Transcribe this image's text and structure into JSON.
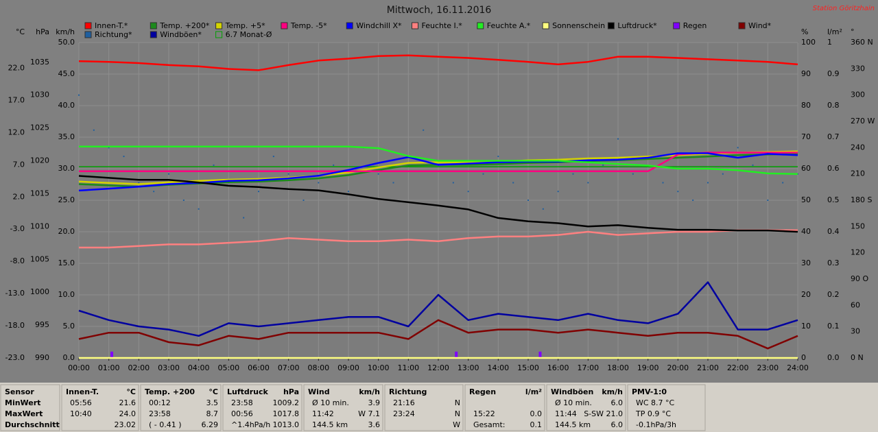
{
  "chart_data": {
    "type": "line",
    "title": "Mittwoch, 16.11.2016",
    "station": "Station Göritzhain",
    "xlim": [
      0,
      24
    ],
    "xticks": [
      {
        "value": 0,
        "label": "00:00"
      },
      {
        "value": 1,
        "label": "01:00"
      },
      {
        "value": 2,
        "label": "02:00"
      },
      {
        "value": 3,
        "label": "03:00"
      },
      {
        "value": 4,
        "label": "04:00"
      },
      {
        "value": 5,
        "label": "05:00"
      },
      {
        "value": 6,
        "label": "06:00"
      },
      {
        "value": 7,
        "label": "07:00"
      },
      {
        "value": 8,
        "label": "08:00"
      },
      {
        "value": 9,
        "label": "09:00"
      },
      {
        "value": 10,
        "label": "10:00"
      },
      {
        "value": 11,
        "label": "11:00"
      },
      {
        "value": 12,
        "label": "12:00"
      },
      {
        "value": 13,
        "label": "13:00"
      },
      {
        "value": 14,
        "label": "14:00"
      },
      {
        "value": 15,
        "label": "15:00"
      },
      {
        "value": 16,
        "label": "16:00"
      },
      {
        "value": 17,
        "label": "17:00"
      },
      {
        "value": 18,
        "label": "18:00"
      },
      {
        "value": 19,
        "label": "19:00"
      },
      {
        "value": 20,
        "label": "20:00"
      },
      {
        "value": 21,
        "label": "21:00"
      },
      {
        "value": 22,
        "label": "22:00"
      },
      {
        "value": 23,
        "label": "23:00"
      },
      {
        "value": 24,
        "label": "24:00"
      }
    ],
    "grid": true,
    "axes": [
      {
        "unit": "°C",
        "side": "left",
        "lim": [
          -23,
          26
        ],
        "ticks": [
          {
            "value": -23,
            "label": "-23.0"
          },
          {
            "value": -18,
            "label": "-18.0"
          },
          {
            "value": -13,
            "label": "-13.0"
          },
          {
            "value": -8,
            "label": "-8.0"
          },
          {
            "value": -3,
            "label": "-3.0"
          },
          {
            "value": 2,
            "label": "2.0"
          },
          {
            "value": 7,
            "label": "7.0"
          },
          {
            "value": 12,
            "label": "12.0"
          },
          {
            "value": 17,
            "label": "17.0"
          },
          {
            "value": 22,
            "label": "22.0"
          }
        ]
      },
      {
        "unit": "hPa",
        "side": "left",
        "lim": [
          990,
          1038
        ],
        "ticks": [
          990,
          995,
          1000,
          1005,
          1010,
          1015,
          1020,
          1025,
          1030,
          1035
        ]
      },
      {
        "unit": "km/h",
        "side": "left",
        "lim": [
          0,
          50
        ],
        "grid": true,
        "ticks": [
          {
            "value": 0,
            "label": "0.0"
          },
          {
            "value": 5,
            "label": "5.0"
          },
          {
            "value": 10,
            "label": "10.0"
          },
          {
            "value": 15,
            "label": "15.0"
          },
          {
            "value": 20,
            "label": "20.0"
          },
          {
            "value": 25,
            "label": "25.0"
          },
          {
            "value": 30,
            "label": "30.0"
          },
          {
            "value": 35,
            "label": "35.0"
          },
          {
            "value": 40,
            "label": "40.0"
          },
          {
            "value": 45,
            "label": "45.0"
          },
          {
            "value": 50,
            "label": "50.0"
          }
        ]
      },
      {
        "unit": "%",
        "side": "right",
        "lim": [
          0,
          100
        ],
        "ticks": [
          0,
          10,
          20,
          30,
          40,
          50,
          60,
          70,
          80,
          90,
          100
        ]
      },
      {
        "unit": "l/m²",
        "side": "right",
        "lim": [
          0,
          1
        ],
        "ticks": [
          {
            "value": 0,
            "label": "0.0"
          },
          {
            "value": 0.1,
            "label": "0.1"
          },
          {
            "value": 0.2,
            "label": "0.2"
          },
          {
            "value": 0.3,
            "label": "0.3"
          },
          {
            "value": 0.4,
            "label": "0.4"
          },
          {
            "value": 0.5,
            "label": "0.5"
          },
          {
            "value": 0.6,
            "label": "0.6"
          },
          {
            "value": 0.7,
            "label": "0.7"
          },
          {
            "value": 0.8,
            "label": "0.8"
          },
          {
            "value": 0.9,
            "label": "0.9"
          },
          1
        ]
      },
      {
        "unit": "°",
        "side": "right",
        "lim": [
          0,
          360
        ],
        "ticks": [
          {
            "value": 0,
            "label": "0 N"
          },
          30,
          60,
          {
            "value": 90,
            "label": "90 O"
          },
          120,
          150,
          {
            "value": 180,
            "label": "180 S"
          },
          210,
          240,
          {
            "value": 270,
            "label": "270 W"
          },
          300,
          330,
          {
            "value": 360,
            "label": "360 N"
          }
        ]
      }
    ],
    "x": [
      0,
      1,
      2,
      3,
      4,
      5,
      6,
      7,
      8,
      9,
      10,
      11,
      12,
      13,
      14,
      15,
      16,
      17,
      18,
      19,
      20,
      21,
      22,
      23,
      24
    ],
    "series": [
      {
        "name": "Innen-T.*",
        "color": "#ff0000",
        "axis": "°C",
        "type": "line",
        "values": [
          23.1,
          23.0,
          22.8,
          22.5,
          22.3,
          21.9,
          21.7,
          22.5,
          23.2,
          23.5,
          23.9,
          24.0,
          23.8,
          23.6,
          23.3,
          23.0,
          22.6,
          23.0,
          23.8,
          23.8,
          23.6,
          23.4,
          23.2,
          23.0,
          22.6
        ]
      },
      {
        "name": "Temp. +200*",
        "color": "#1c8a1c",
        "axis": "°C",
        "type": "line",
        "values": [
          4.0,
          3.8,
          3.6,
          3.9,
          4.1,
          4.3,
          4.4,
          4.6,
          4.9,
          5.4,
          6.2,
          6.9,
          7.0,
          7.0,
          7.1,
          7.3,
          7.4,
          7.6,
          7.7,
          7.9,
          8.1,
          8.3,
          8.5,
          8.6,
          8.7
        ]
      },
      {
        "name": "Temp. +5*",
        "color": "#d4d400",
        "axis": "°C",
        "type": "line",
        "values": [
          4.4,
          4.2,
          4.0,
          4.3,
          4.5,
          4.7,
          4.8,
          5.0,
          5.3,
          5.8,
          6.6,
          7.3,
          7.4,
          7.4,
          7.5,
          7.7,
          7.8,
          8.0,
          8.1,
          8.3,
          8.5,
          8.7,
          8.9,
          9.0,
          9.1
        ]
      },
      {
        "name": "Temp. -5*",
        "color": "#ff0080",
        "axis": "°C",
        "type": "line",
        "values": [
          6.0,
          6.0,
          6.0,
          6.0,
          6.0,
          6.0,
          6.0,
          6.0,
          6.0,
          6.0,
          6.0,
          6.0,
          6.0,
          6.0,
          6.0,
          6.0,
          6.0,
          6.0,
          6.0,
          6.0,
          8.6,
          8.9,
          8.9,
          8.9,
          8.9
        ]
      },
      {
        "name": "Windchill X*",
        "color": "#0000ff",
        "axis": "°C",
        "type": "line",
        "values": [
          3.0,
          3.3,
          3.6,
          4.0,
          4.2,
          4.5,
          4.6,
          4.9,
          5.3,
          6.2,
          7.3,
          8.2,
          7.0,
          7.2,
          7.4,
          7.5,
          7.5,
          7.7,
          7.8,
          8.1,
          8.8,
          8.8,
          8.1,
          8.7,
          8.5
        ]
      },
      {
        "name": "Feuchte I.*",
        "color": "#ff8080",
        "axis": "%",
        "type": "line",
        "values": [
          35,
          35,
          35.5,
          36,
          36,
          36.5,
          37,
          38,
          37.5,
          37,
          37,
          37.5,
          37,
          38,
          38.5,
          38.5,
          39,
          40,
          39,
          39.5,
          40,
          40,
          40.5,
          40.5,
          40.5
        ]
      },
      {
        "name": "Feuchte A.*",
        "color": "#22ee22",
        "axis": "%",
        "type": "line",
        "values": [
          67,
          67,
          67,
          67,
          67,
          67,
          67,
          67,
          67,
          67,
          66.5,
          64,
          62.5,
          62.5,
          62.5,
          62.5,
          62.5,
          62,
          61.5,
          61,
          60,
          60,
          59.5,
          58.5,
          58.3
        ]
      },
      {
        "name": "Sonnenschein",
        "color": "#ffff80",
        "axis": "%",
        "type": "line",
        "x": [
          0,
          24
        ],
        "values": [
          0,
          0
        ]
      },
      {
        "name": "Luftdruck*",
        "color": "#000000",
        "axis": "hPa",
        "type": "line",
        "values": [
          1017.7,
          1017.4,
          1017.1,
          1017.1,
          1016.7,
          1016.2,
          1016.0,
          1015.7,
          1015.5,
          1014.9,
          1014.2,
          1013.7,
          1013.2,
          1012.6,
          1011.3,
          1010.8,
          1010.5,
          1010.0,
          1010.2,
          1009.8,
          1009.5,
          1009.5,
          1009.4,
          1009.4,
          1009.2
        ]
      },
      {
        "name": "Regen",
        "color": "#8000ff",
        "axis": "l/m²",
        "type": "bar",
        "x": [
          1.1,
          12.6,
          15.4
        ],
        "values": [
          0.02,
          0.02,
          0.02
        ]
      },
      {
        "name": "Wind*",
        "color": "#800000",
        "axis": "km/h",
        "type": "line",
        "values": [
          3,
          4,
          4,
          2.5,
          2,
          3.5,
          3,
          4,
          4,
          4,
          4,
          3,
          6,
          4,
          4.5,
          4.5,
          4,
          4.5,
          4,
          3.5,
          4,
          4,
          3.5,
          1.5,
          3.5
        ]
      },
      {
        "name": "Richtung*",
        "color": "#1f5f9f",
        "axis": "°",
        "type": "scatter",
        "x": [
          0,
          0.5,
          1,
          1.5,
          2,
          2.5,
          3,
          3.5,
          4,
          4.5,
          5,
          5.5,
          6,
          6.5,
          7,
          7.5,
          8,
          8.5,
          9,
          9.5,
          10,
          10.5,
          11,
          11.5,
          12,
          12.5,
          13,
          13.5,
          14,
          14.5,
          15,
          15.5,
          16,
          16.5,
          17,
          17.5,
          18,
          18.5,
          19,
          19.5,
          20,
          20.5,
          21,
          21.5,
          22,
          22.5,
          23,
          23.5,
          24
        ],
        "values": [
          300,
          260,
          240,
          230,
          200,
          190,
          210,
          180,
          170,
          220,
          200,
          160,
          190,
          230,
          210,
          180,
          200,
          220,
          190,
          240,
          210,
          200,
          230,
          260,
          220,
          200,
          190,
          210,
          230,
          200,
          180,
          170,
          190,
          210,
          200,
          220,
          250,
          210,
          230,
          200,
          190,
          180,
          200,
          210,
          240,
          220,
          180,
          200,
          210
        ]
      },
      {
        "name": "Windböen*",
        "color": "#0000a0",
        "axis": "km/h",
        "type": "line",
        "values": [
          7.5,
          6,
          5,
          4.5,
          3.5,
          5.5,
          5,
          5.5,
          6,
          6.5,
          6.5,
          5,
          10,
          6,
          7,
          6.5,
          6,
          7,
          6,
          5.5,
          7,
          12,
          4.5,
          4.5,
          6
        ]
      },
      {
        "name": "6.7 Monat-Ø",
        "color": "#00a000",
        "axis": "°C",
        "type": "hline",
        "value": 6.7
      }
    ]
  },
  "table": {
    "header": "Sensor",
    "row_labels": [
      "MinWert",
      "MaxWert",
      "Durchschnitt"
    ],
    "columns": [
      {
        "name": "Innen-T.",
        "unit": "°C",
        "cells": [
          [
            "05:56",
            "21.6"
          ],
          [
            "10:40",
            "24.0"
          ],
          [
            null,
            "23.02"
          ]
        ]
      },
      {
        "name": "Temp. +200",
        "unit": "°C",
        "cells": [
          [
            "00:12",
            "3.5"
          ],
          [
            "23:58",
            "8.7"
          ],
          [
            "( - 0.41 )",
            "6.29"
          ]
        ]
      },
      {
        "name": "Luftdruck",
        "unit": "hPa",
        "cells": [
          [
            "23:58",
            "1009.2"
          ],
          [
            "00:56",
            "1017.8"
          ],
          [
            "^1.4hPa/h",
            "1013.0"
          ]
        ]
      },
      {
        "name": "Wind",
        "unit": "km/h",
        "cells": [
          [
            "Ø 10 min.",
            "3.9"
          ],
          [
            "11:42",
            "W 7.1"
          ],
          [
            "144.5 km",
            "3.6"
          ]
        ]
      },
      {
        "name": "Richtung",
        "unit": null,
        "cells": [
          [
            "21:16",
            "N"
          ],
          [
            "23:24",
            "N"
          ],
          [
            null,
            "W"
          ]
        ]
      },
      {
        "name": "Regen",
        "unit": "l/m²",
        "cells": [
          [
            null,
            null
          ],
          [
            "15:22",
            "0.0"
          ],
          [
            "Gesamt:",
            "0.1"
          ]
        ]
      },
      {
        "name": "Windböen",
        "unit": "km/h",
        "cells": [
          [
            "Ø 10 min.",
            "6.0"
          ],
          [
            "11:44",
            "S-SW 21.0"
          ],
          [
            "144.5 km",
            "6.0"
          ]
        ]
      },
      {
        "name": "PMV-1:0",
        "unit": null,
        "cells": [
          [
            "WC 8.7 °C",
            null
          ],
          [
            "TP 0.9 °C",
            null
          ],
          [
            "-0.1hPa/3h",
            null
          ]
        ]
      }
    ]
  }
}
